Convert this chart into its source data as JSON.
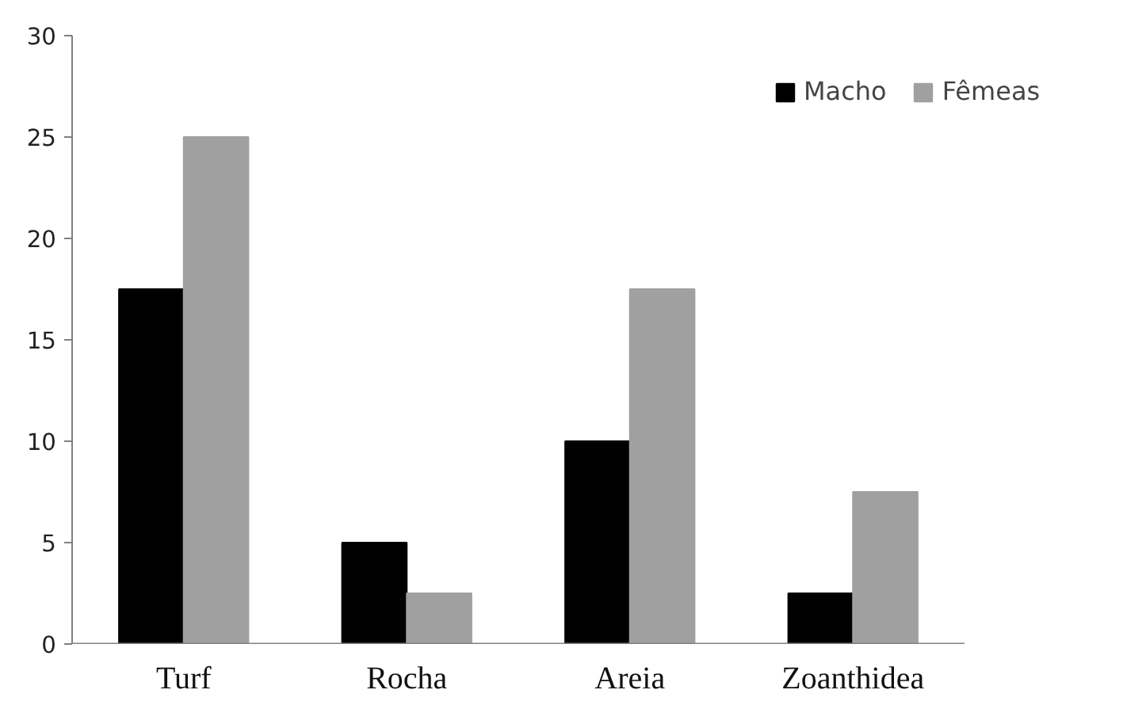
{
  "chart_data": {
    "type": "bar",
    "categories": [
      "Turf",
      "Rocha",
      "Areia",
      "Zoanthidea"
    ],
    "series": [
      {
        "name": "Macho",
        "color": "#000000",
        "values": [
          17.5,
          5,
          10,
          2.5
        ]
      },
      {
        "name": "Fêmeas",
        "color": "#a0a0a0",
        "values": [
          25,
          2.5,
          17.5,
          7.5
        ]
      }
    ],
    "ylim": [
      0,
      30
    ],
    "yticks": [
      0,
      5,
      10,
      15,
      20,
      25,
      30
    ],
    "legend": "top right"
  }
}
